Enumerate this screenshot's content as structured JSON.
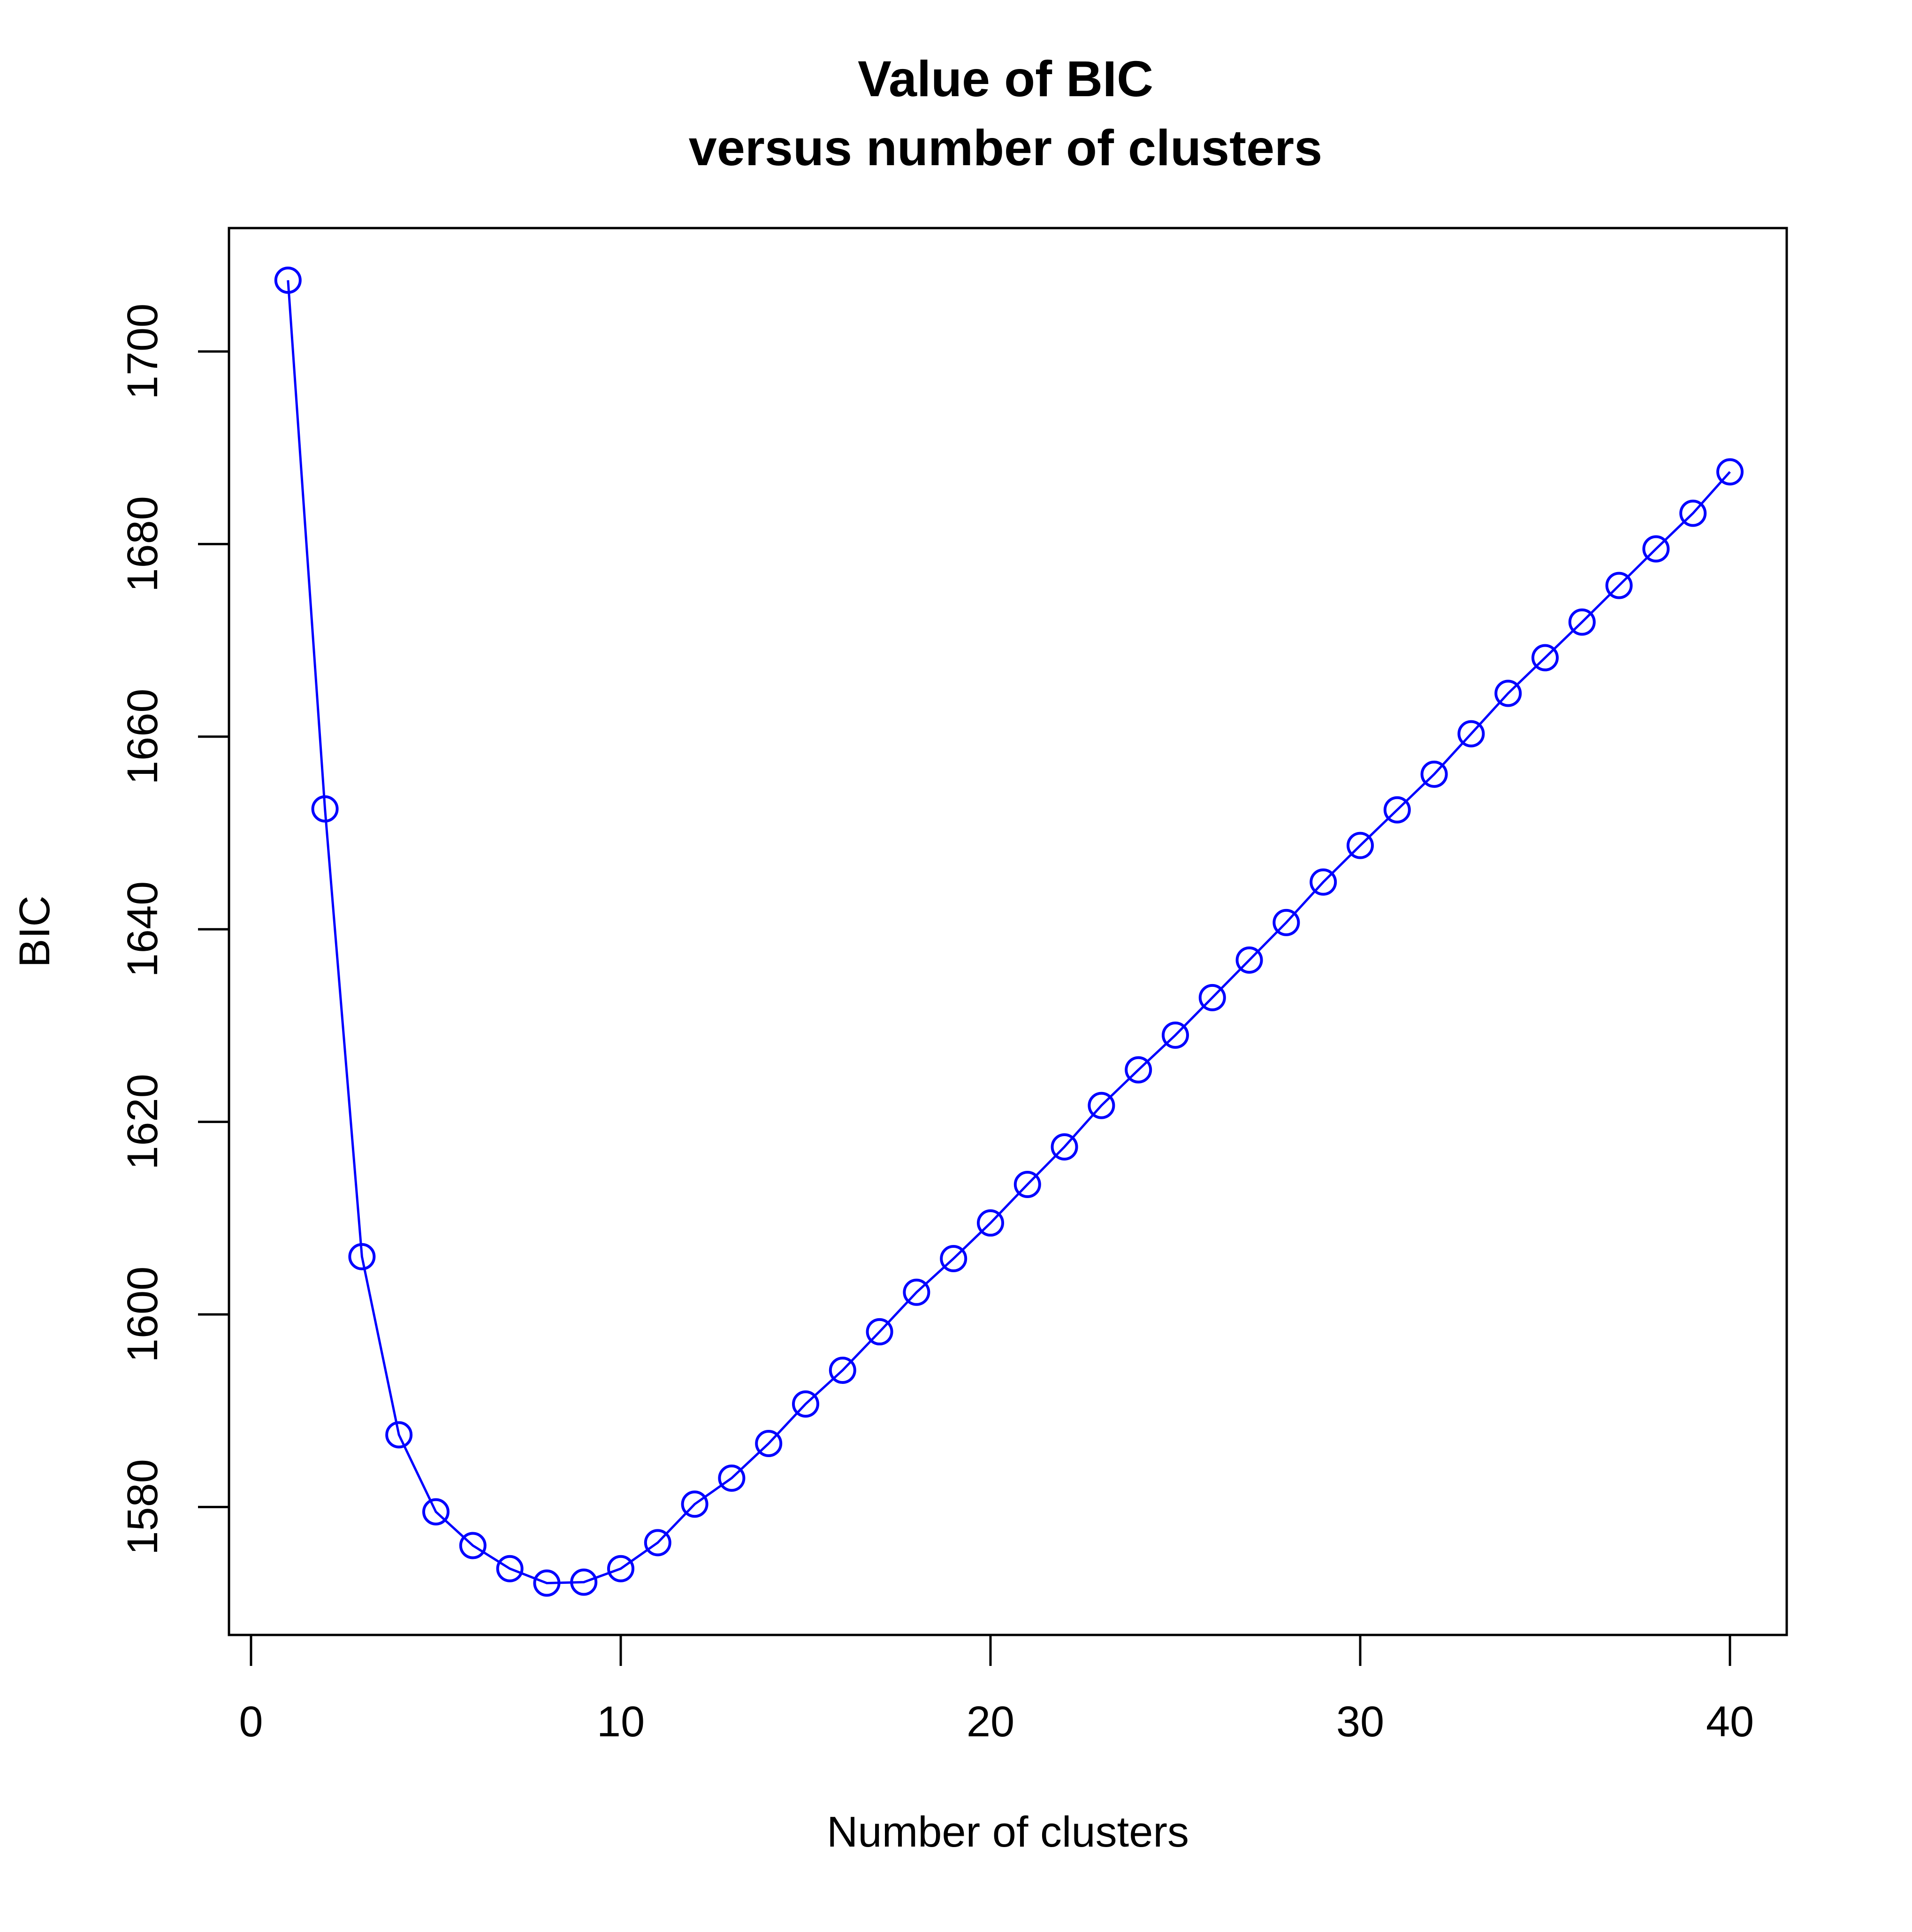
{
  "chart_data": {
    "type": "line",
    "title": "Value of BIC",
    "subtitle": "versus number of clusters",
    "xlabel": "Number of clusters",
    "ylabel": "BIC",
    "xlim": [
      -0.6,
      41.6
    ],
    "ylim": [
      1567.5,
      1713.5
    ],
    "xticks": [
      0,
      10,
      20,
      30,
      40
    ],
    "yticks": [
      1580,
      1600,
      1620,
      1640,
      1660,
      1680,
      1700
    ],
    "grid": false,
    "legend": null,
    "marker": "open-circle",
    "line_color": "#0000ff",
    "x": [
      1,
      2,
      3,
      4,
      5,
      6,
      7,
      8,
      9,
      10,
      11,
      12,
      13,
      14,
      15,
      16,
      17,
      18,
      19,
      20,
      21,
      22,
      23,
      24,
      25,
      26,
      27,
      28,
      29,
      30,
      31,
      32,
      33,
      34,
      35,
      36,
      37,
      38,
      39,
      40
    ],
    "series": [
      {
        "name": "BIC",
        "values": [
          1707.4,
          1652.5,
          1606.0,
          1587.5,
          1579.5,
          1576.0,
          1573.6,
          1572.1,
          1572.2,
          1573.6,
          1576.3,
          1580.3,
          1583.0,
          1586.6,
          1590.7,
          1594.2,
          1598.2,
          1602.3,
          1605.8,
          1609.5,
          1613.5,
          1617.4,
          1621.7,
          1625.4,
          1629.0,
          1632.9,
          1636.8,
          1640.7,
          1644.9,
          1648.7,
          1652.4,
          1656.1,
          1660.3,
          1664.5,
          1668.2,
          1671.9,
          1675.7,
          1679.5,
          1683.2,
          1687.5
        ]
      }
    ]
  }
}
